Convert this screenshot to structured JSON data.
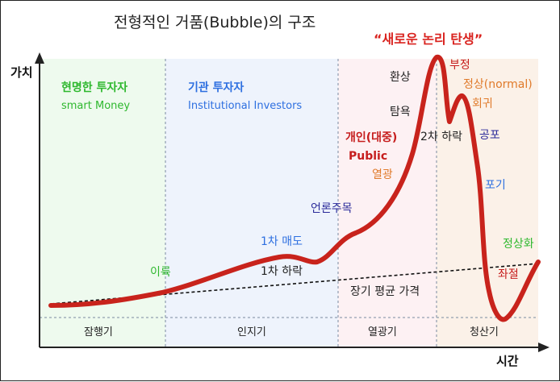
{
  "title": "전형적인 거품(Bubble)의 구조",
  "axes": {
    "y_label": "가치",
    "x_label": "시간"
  },
  "bubble_title": "“새로운 논리 탄생”",
  "phases": [
    {
      "name": "잠행기",
      "investor": "현명한 투자자",
      "investor_en": "smart Money",
      "color": "#eefaee"
    },
    {
      "name": "인지기",
      "investor": "기관 투자자",
      "investor_en": "Institutional Investors",
      "color": "#eef3fc"
    },
    {
      "name": "열광기",
      "investor": "개인(대중)",
      "investor_en": "Public",
      "color": "#fdf1f3"
    },
    {
      "name": "청산기",
      "investor": "",
      "investor_en": "",
      "color": "#fbf1e8"
    }
  ],
  "annotations": {
    "profit": "이륙",
    "first_sell": "1차 매도",
    "first_drop": "1차 하락",
    "media": "언론주목",
    "long_avg": "장기 평균 가격",
    "euphoria": "환상",
    "greed": "탐욕",
    "enthusiasm": "열광",
    "second_drop": "2차 하락",
    "denial": "부정",
    "normal": "정상(normal)",
    "return": "회귀",
    "fear": "공포",
    "giveup": "포기",
    "despair": "좌절",
    "normalize": "정상화"
  },
  "colors": {
    "curve": "#c8231c",
    "green": "#2eb82e",
    "blue": "#2d6fe0",
    "red": "#c61d1d",
    "orange": "#e07a2a"
  }
}
